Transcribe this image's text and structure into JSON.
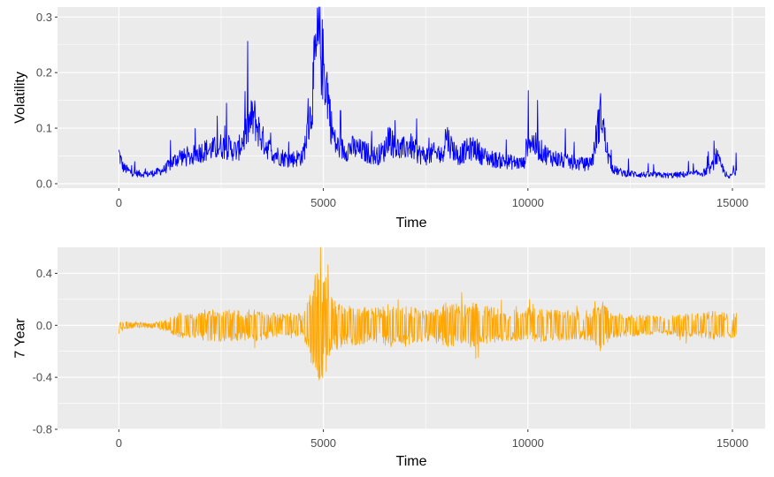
{
  "chart_data": [
    {
      "type": "line",
      "xlabel": "Time",
      "ylabel": "Volatility",
      "xlim": [
        -1500,
        15800
      ],
      "ylim": [
        -0.008,
        0.318
      ],
      "x_ticks": [
        0,
        5000,
        10000,
        15000
      ],
      "x_tick_labels": [
        "0",
        "5000",
        "10000",
        "15000"
      ],
      "y_ticks": [
        0.0,
        0.1,
        0.2,
        0.3
      ],
      "y_tick_labels": [
        "0.0",
        "0.1",
        "0.2",
        "0.3"
      ],
      "grid": true,
      "panel_background": "#ebebeb",
      "color": "#0000ff",
      "series": [
        {
          "x": [
            0,
            100,
            300,
            500,
            700,
            900,
            1100,
            1300,
            1500,
            1700,
            1900,
            2100,
            2300,
            2500,
            2700,
            2900,
            3100,
            3200,
            3300,
            3400,
            3500,
            3700,
            3900,
            4100,
            4300,
            4500,
            4700,
            4800,
            4900,
            5000,
            5100,
            5200,
            5300,
            5500,
            5700,
            5900,
            6100,
            6300,
            6500,
            6600,
            6700,
            6900,
            7100,
            7300,
            7500,
            7700,
            7900,
            8000,
            8100,
            8300,
            8500,
            8700,
            8900,
            9100,
            9300,
            9500,
            9700,
            9900,
            10000,
            10100,
            10300,
            10500,
            10700,
            10900,
            11100,
            11300,
            11500,
            11600,
            11700,
            11800,
            11900,
            12000,
            12100,
            12300,
            12500,
            12700,
            12900,
            13100,
            13300,
            13500,
            13700,
            13900,
            14100,
            14300,
            14500,
            14600,
            14700,
            14900,
            15100
          ],
          "y": [
            0.055,
            0.03,
            0.02,
            0.018,
            0.017,
            0.02,
            0.025,
            0.038,
            0.05,
            0.045,
            0.055,
            0.06,
            0.062,
            0.068,
            0.065,
            0.058,
            0.09,
            0.11,
            0.12,
            0.1,
            0.08,
            0.06,
            0.05,
            0.045,
            0.045,
            0.05,
            0.13,
            0.22,
            0.26,
            0.21,
            0.17,
            0.1,
            0.07,
            0.06,
            0.065,
            0.06,
            0.055,
            0.05,
            0.06,
            0.09,
            0.07,
            0.06,
            0.07,
            0.055,
            0.05,
            0.055,
            0.05,
            0.09,
            0.07,
            0.05,
            0.06,
            0.065,
            0.05,
            0.045,
            0.042,
            0.04,
            0.038,
            0.036,
            0.08,
            0.075,
            0.06,
            0.05,
            0.045,
            0.04,
            0.038,
            0.035,
            0.035,
            0.05,
            0.1,
            0.13,
            0.07,
            0.04,
            0.025,
            0.02,
            0.018,
            0.017,
            0.016,
            0.016,
            0.015,
            0.015,
            0.016,
            0.017,
            0.018,
            0.02,
            0.03,
            0.05,
            0.035,
            0.01,
            0.025
          ]
        }
      ]
    },
    {
      "type": "line",
      "xlabel": "Time",
      "ylabel": "7 Year",
      "xlim": [
        -1500,
        15800
      ],
      "ylim": [
        -0.8,
        0.6
      ],
      "x_ticks": [
        0,
        5000,
        10000,
        15000
      ],
      "x_tick_labels": [
        "0",
        "5000",
        "10000",
        "15000"
      ],
      "y_ticks": [
        -0.8,
        -0.4,
        0.0,
        0.4
      ],
      "y_tick_labels": [
        "-0.8",
        "-0.4",
        "0.0",
        "0.4"
      ],
      "grid": true,
      "panel_background": "#ebebeb",
      "color": "#ffa500",
      "series": [
        {
          "x": [
            0,
            100,
            300,
            500,
            700,
            900,
            1100,
            1300,
            1500,
            1700,
            1900,
            2100,
            2300,
            2500,
            2700,
            2900,
            3100,
            3300,
            3500,
            3700,
            3900,
            4100,
            4300,
            4500,
            4700,
            4800,
            4900,
            5000,
            5100,
            5200,
            5300,
            5500,
            5700,
            5900,
            6100,
            6300,
            6500,
            6600,
            6700,
            6900,
            7100,
            7300,
            7500,
            7700,
            7900,
            8000,
            8100,
            8300,
            8500,
            8700,
            8900,
            9100,
            9300,
            9500,
            9700,
            9900,
            10000,
            10100,
            10300,
            10500,
            10700,
            10900,
            11100,
            11300,
            11500,
            11600,
            11700,
            11800,
            11900,
            12000,
            12100,
            12300,
            12500,
            12700,
            12900,
            13100,
            13300,
            13500,
            13700,
            13900,
            14100,
            14300,
            14500,
            14600,
            14700,
            14900,
            15100
          ],
          "amplitude": [
            0.04,
            0.03,
            0.025,
            0.02,
            0.02,
            0.025,
            0.04,
            0.07,
            0.1,
            0.1,
            0.1,
            0.12,
            0.12,
            0.13,
            0.12,
            0.12,
            0.12,
            0.13,
            0.12,
            0.1,
            0.09,
            0.09,
            0.09,
            0.1,
            0.3,
            0.4,
            0.45,
            0.4,
            0.35,
            0.22,
            0.2,
            0.16,
            0.15,
            0.16,
            0.14,
            0.14,
            0.15,
            0.2,
            0.15,
            0.14,
            0.15,
            0.13,
            0.13,
            0.14,
            0.14,
            0.2,
            0.18,
            0.15,
            0.17,
            0.18,
            0.16,
            0.14,
            0.13,
            0.12,
            0.12,
            0.11,
            0.14,
            0.14,
            0.13,
            0.12,
            0.12,
            0.12,
            0.11,
            0.11,
            0.12,
            0.15,
            0.2,
            0.2,
            0.15,
            0.12,
            0.1,
            0.09,
            0.09,
            0.08,
            0.08,
            0.08,
            0.08,
            0.08,
            0.09,
            0.09,
            0.09,
            0.1,
            0.12,
            0.12,
            0.1,
            0.1,
            0.1
          ]
        }
      ]
    }
  ]
}
